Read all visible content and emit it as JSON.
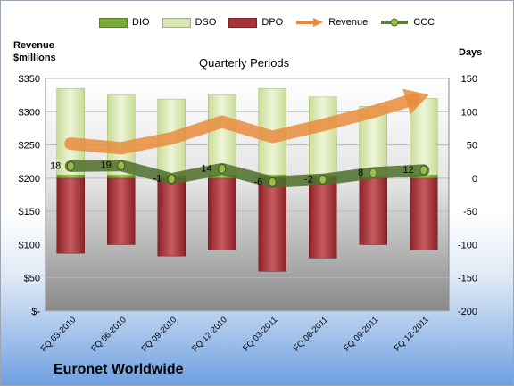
{
  "chart_data": {
    "type": "bar",
    "title": "Quarterly Periods",
    "left_axis_label": [
      "Revenue",
      "$millions"
    ],
    "right_axis_label": "Days",
    "company": "Euronet Worldwide",
    "categories": [
      "FQ 03-2010",
      "FQ 06-2010",
      "FQ 09-2010",
      "FQ 12-2010",
      "FQ 03-2011",
      "FQ 06-2011",
      "FQ 09-2011",
      "FQ 12-2011"
    ],
    "left_axis": {
      "ticks": [
        "$-",
        "$50",
        "$100",
        "$150",
        "$200",
        "$250",
        "$300",
        "$350"
      ],
      "range": [
        0,
        350
      ]
    },
    "right_axis": {
      "ticks": [
        "-200",
        "-150",
        "-100",
        "-50",
        "0",
        "50",
        "100",
        "150"
      ],
      "range": [
        -200,
        150
      ]
    },
    "series": [
      {
        "name": "DIO",
        "axis": "right",
        "color": "#7aa83a",
        "values": [
          5,
          5,
          4,
          5,
          5,
          4,
          3,
          5
        ]
      },
      {
        "name": "DSO",
        "axis": "right",
        "color": "#d8e6b4",
        "values": [
          130,
          120,
          115,
          120,
          130,
          118,
          105,
          115
        ]
      },
      {
        "name": "DPO",
        "axis": "right",
        "color": "#a8343a",
        "values": [
          -113,
          -100,
          -117,
          -108,
          -140,
          -120,
          -100,
          -108
        ]
      },
      {
        "name": "Revenue",
        "axis": "left",
        "color": "#e88c3c",
        "values": [
          252,
          245,
          260,
          285,
          262,
          280,
          300,
          323
        ]
      },
      {
        "name": "CCC",
        "axis": "right",
        "color": "#5f7d3a",
        "values": [
          18,
          19,
          -1,
          14,
          -6,
          -2,
          8,
          12
        ]
      }
    ],
    "data_labels": [
      "18",
      "19",
      "-1",
      "14",
      "-6",
      "-2",
      "8",
      "12"
    ]
  }
}
